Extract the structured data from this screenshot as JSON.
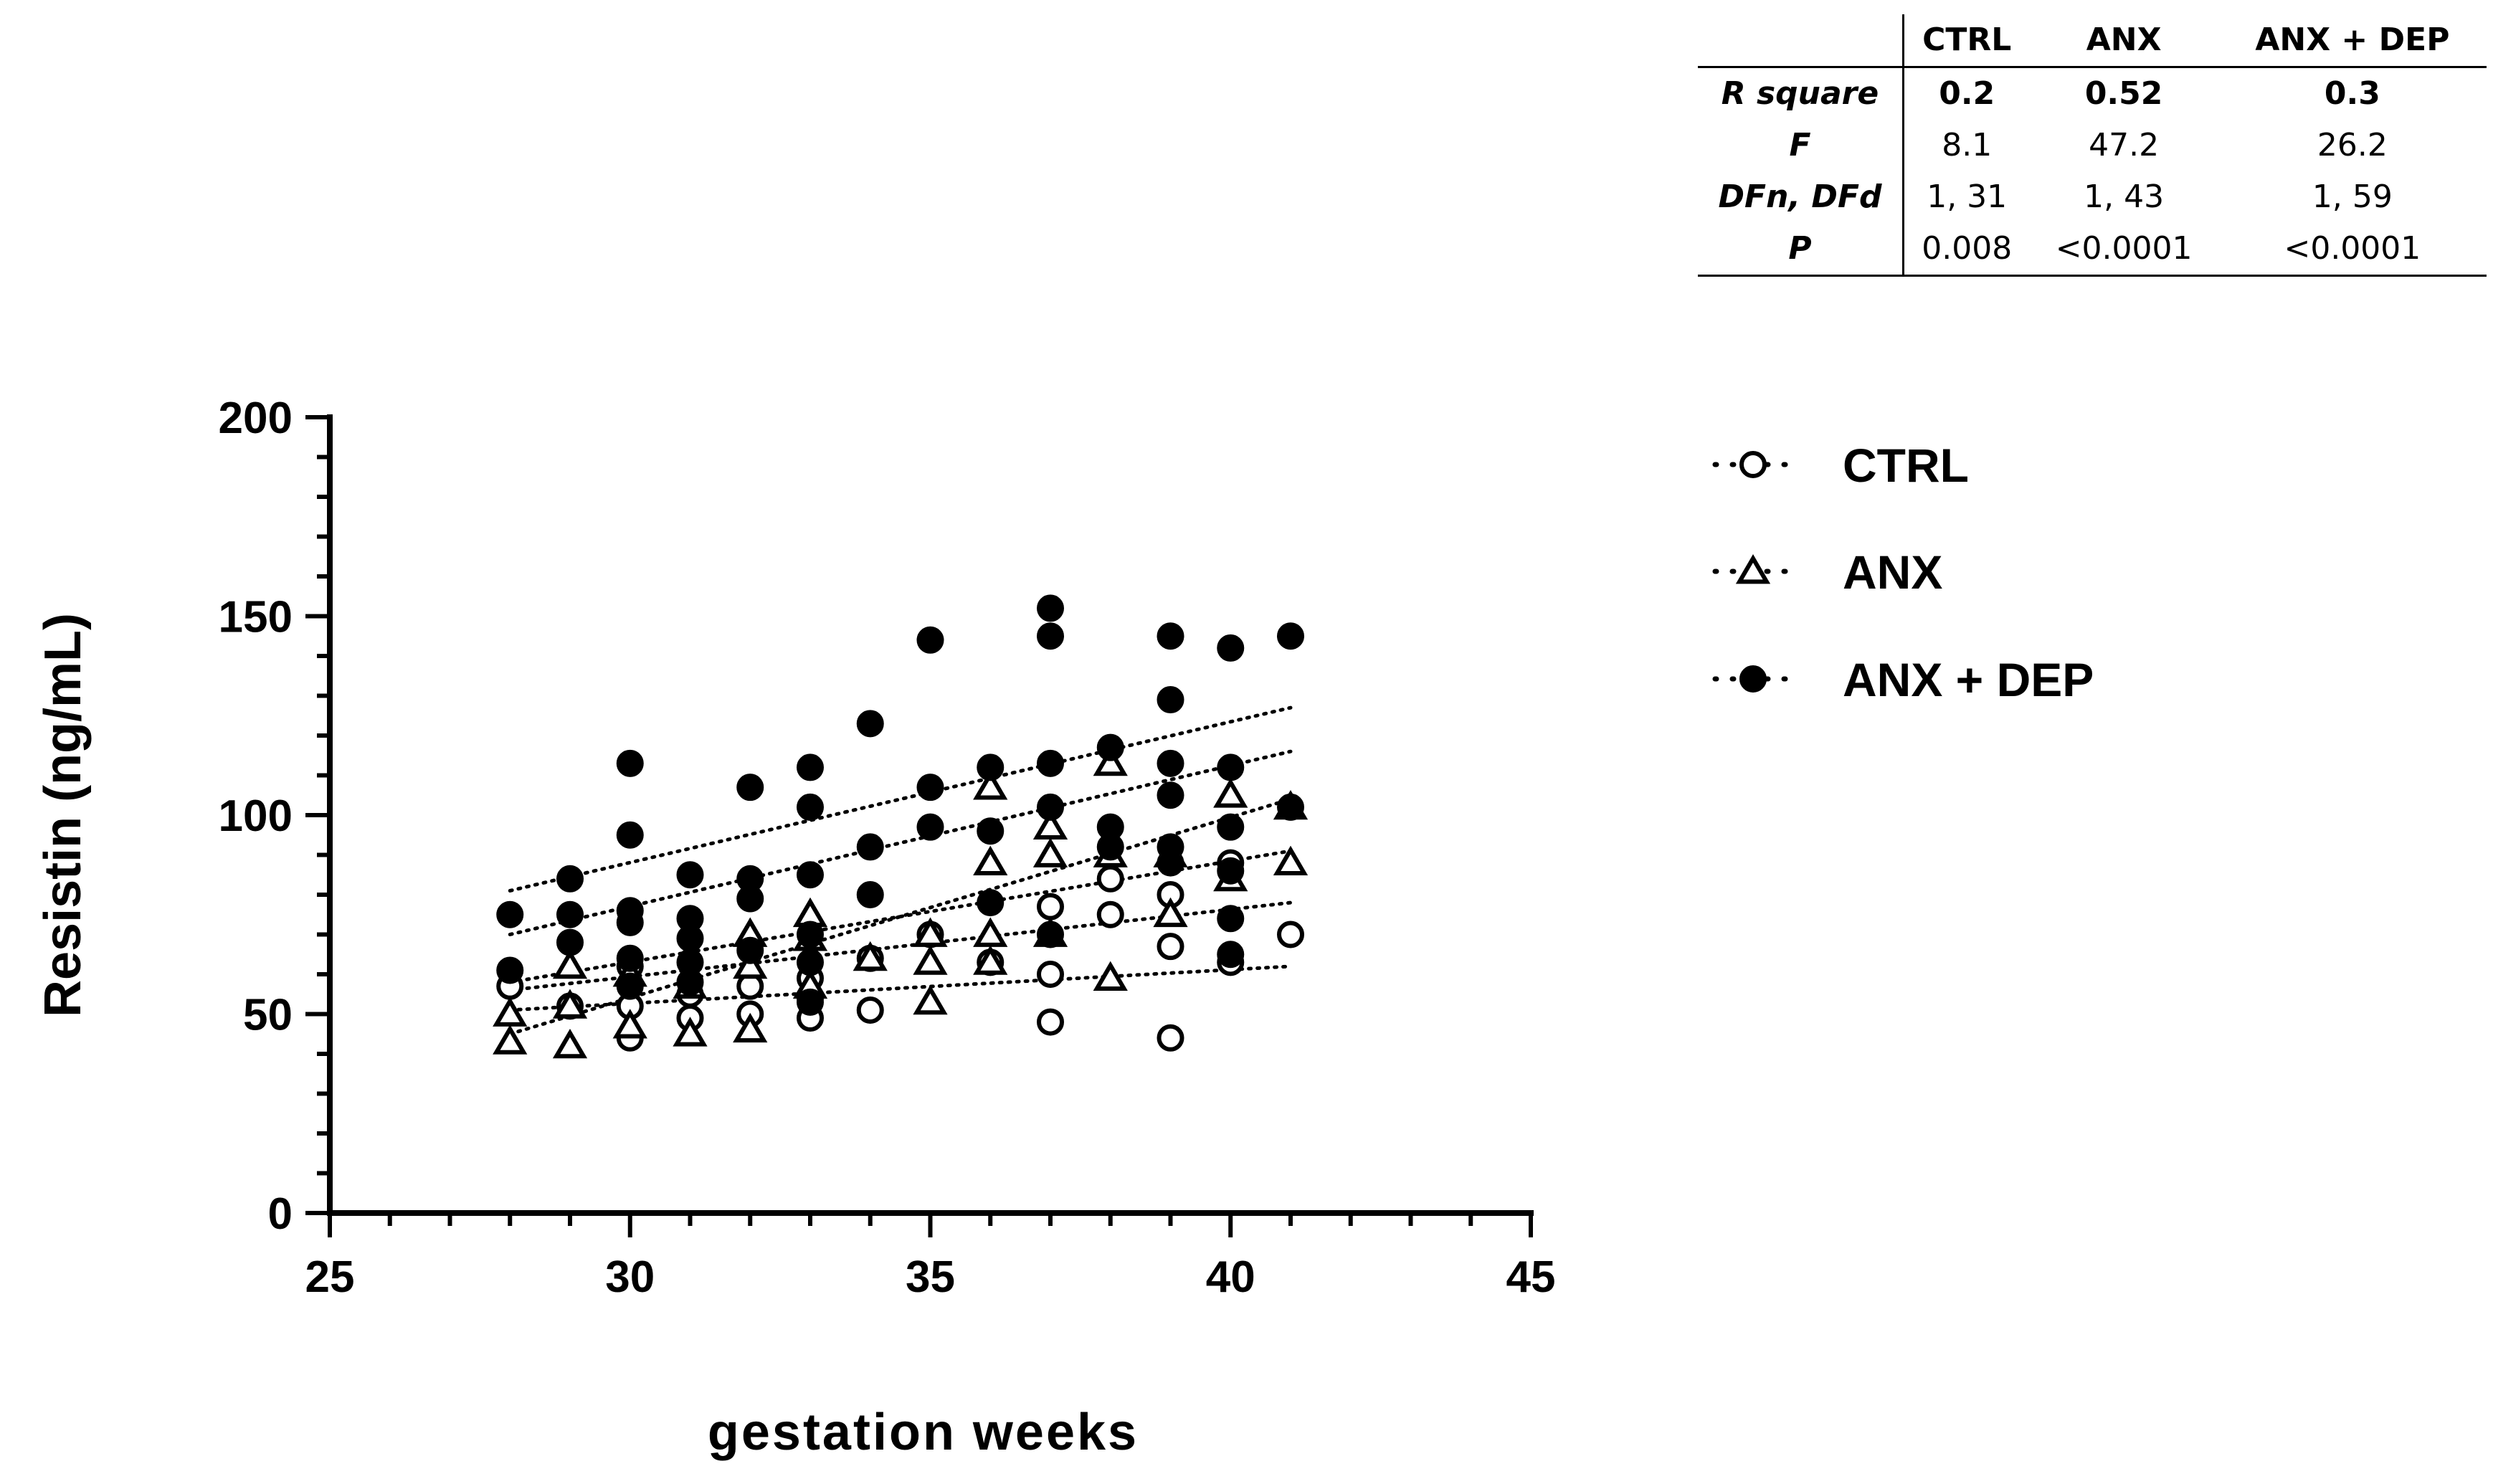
{
  "chart_data": {
    "type": "scatter",
    "title": "",
    "xlabel": "gestation weeks",
    "ylabel": "Resistin (ng/mL)",
    "xlim": [
      25,
      45
    ],
    "ylim": [
      0,
      200
    ],
    "x_ticks": [
      25,
      30,
      35,
      40,
      45
    ],
    "y_ticks": [
      0,
      50,
      100,
      150,
      200
    ],
    "series": [
      {
        "name": "CTRL",
        "marker": "open-circle",
        "points": [
          [
            28,
            57
          ],
          [
            29,
            52
          ],
          [
            30,
            44
          ],
          [
            30,
            52
          ],
          [
            30,
            62
          ],
          [
            31,
            49
          ],
          [
            31,
            55
          ],
          [
            32,
            50
          ],
          [
            32,
            57
          ],
          [
            33,
            49
          ],
          [
            33,
            54
          ],
          [
            33,
            59
          ],
          [
            34,
            51
          ],
          [
            34,
            64
          ],
          [
            35,
            70
          ],
          [
            36,
            63
          ],
          [
            37,
            48
          ],
          [
            37,
            60
          ],
          [
            37,
            77
          ],
          [
            38,
            75
          ],
          [
            38,
            84
          ],
          [
            39,
            44
          ],
          [
            39,
            67
          ],
          [
            39,
            80
          ],
          [
            40,
            63
          ],
          [
            40,
            88
          ],
          [
            41,
            70
          ]
        ],
        "trend": {
          "x": [
            28,
            41
          ],
          "y": [
            51,
            62
          ]
        }
      },
      {
        "name": "ANX",
        "marker": "open-triangle",
        "points": [
          [
            28,
            43
          ],
          [
            28,
            50
          ],
          [
            29,
            42
          ],
          [
            29,
            52
          ],
          [
            29,
            62
          ],
          [
            30,
            47
          ],
          [
            30,
            60
          ],
          [
            31,
            45
          ],
          [
            31,
            57
          ],
          [
            32,
            46
          ],
          [
            32,
            62
          ],
          [
            32,
            70
          ],
          [
            33,
            57
          ],
          [
            33,
            69
          ],
          [
            33,
            75
          ],
          [
            34,
            64
          ],
          [
            35,
            53
          ],
          [
            35,
            63
          ],
          [
            35,
            70
          ],
          [
            36,
            63
          ],
          [
            36,
            70
          ],
          [
            36,
            88
          ],
          [
            36,
            107
          ],
          [
            37,
            70
          ],
          [
            37,
            90
          ],
          [
            37,
            97
          ],
          [
            38,
            59
          ],
          [
            38,
            90
          ],
          [
            38,
            113
          ],
          [
            39,
            75
          ],
          [
            39,
            90
          ],
          [
            40,
            84
          ],
          [
            40,
            105
          ],
          [
            41,
            88
          ],
          [
            41,
            102
          ]
        ],
        "trend": {
          "x": [
            28,
            41
          ],
          "y": [
            45,
            104
          ]
        }
      },
      {
        "name": "ANX + DEP",
        "marker": "filled-circle",
        "points": [
          [
            28,
            61
          ],
          [
            28,
            75
          ],
          [
            29,
            68
          ],
          [
            29,
            75
          ],
          [
            29,
            84
          ],
          [
            30,
            57
          ],
          [
            30,
            64
          ],
          [
            30,
            73
          ],
          [
            30,
            76
          ],
          [
            30,
            95
          ],
          [
            30,
            113
          ],
          [
            31,
            58
          ],
          [
            31,
            63
          ],
          [
            31,
            69
          ],
          [
            31,
            74
          ],
          [
            31,
            85
          ],
          [
            32,
            66
          ],
          [
            32,
            79
          ],
          [
            32,
            84
          ],
          [
            32,
            107
          ],
          [
            33,
            53
          ],
          [
            33,
            63
          ],
          [
            33,
            70
          ],
          [
            33,
            85
          ],
          [
            33,
            102
          ],
          [
            33,
            112
          ],
          [
            34,
            80
          ],
          [
            34,
            92
          ],
          [
            34,
            123
          ],
          [
            35,
            97
          ],
          [
            35,
            107
          ],
          [
            35,
            144
          ],
          [
            36,
            78
          ],
          [
            36,
            96
          ],
          [
            36,
            112
          ],
          [
            37,
            70
          ],
          [
            37,
            102
          ],
          [
            37,
            113
          ],
          [
            37,
            145
          ],
          [
            37,
            152
          ],
          [
            38,
            92
          ],
          [
            38,
            97
          ],
          [
            38,
            117
          ],
          [
            39,
            88
          ],
          [
            39,
            92
          ],
          [
            39,
            105
          ],
          [
            39,
            113
          ],
          [
            39,
            129
          ],
          [
            39,
            145
          ],
          [
            40,
            65
          ],
          [
            40,
            74
          ],
          [
            40,
            86
          ],
          [
            40,
            97
          ],
          [
            40,
            112
          ],
          [
            40,
            142
          ],
          [
            41,
            102
          ],
          [
            41,
            145
          ]
        ],
        "trend": {
          "x": [
            28,
            41
          ],
          "y": [
            81,
            127
          ]
        }
      }
    ],
    "extra_trend_lines": [
      {
        "x": [
          28,
          41
        ],
        "y": [
          56,
          78
        ]
      },
      {
        "x": [
          28,
          41
        ],
        "y": [
          58,
          91
        ]
      },
      {
        "x": [
          28,
          41
        ],
        "y": [
          70,
          116
        ]
      }
    ],
    "legend": [
      "CTRL",
      "ANX",
      "ANX + DEP"
    ],
    "legend_position": "right",
    "stats_table": {
      "columns": [
        "CTRL",
        "ANX",
        "ANX + DEP"
      ],
      "rows": [
        {
          "label": "R square",
          "values": [
            "0.2",
            "0.52",
            "0.3"
          ]
        },
        {
          "label": "F",
          "values": [
            "8.1",
            "47.2",
            "26.2"
          ]
        },
        {
          "label": "DFn, DFd",
          "values": [
            "1, 31",
            "1, 43",
            "1, 59"
          ]
        },
        {
          "label": "P",
          "values": [
            "0.008",
            "<0.0001",
            "<0.0001"
          ]
        }
      ]
    }
  }
}
